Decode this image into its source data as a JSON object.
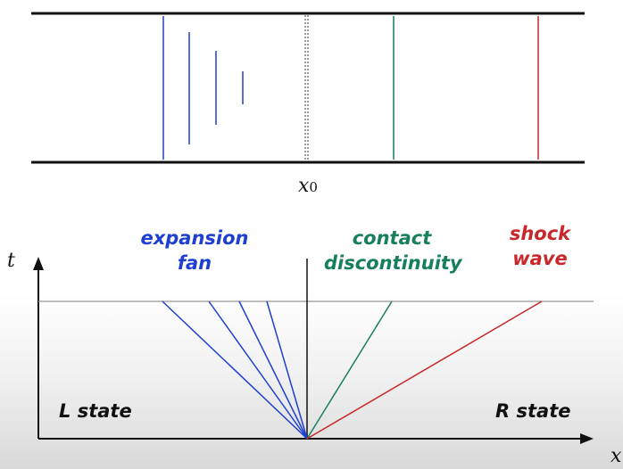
{
  "tube": {
    "x0_label": "x",
    "x0_subscript": "0"
  },
  "axes": {
    "t_label": "t",
    "x_label": "x"
  },
  "labels": {
    "expansion_line1": "expansion",
    "expansion_line2": "fan",
    "contact_line1": "contact",
    "contact_line2": "discontinuity",
    "shock_line1": "shock",
    "shock_line2": "wave",
    "left_state": "L state",
    "right_state": "R state"
  },
  "colors": {
    "expansion": "#1f3fd0",
    "contact": "#17805a",
    "shock": "#c8282a",
    "axis": "#111111",
    "time_line": "#999999"
  }
}
